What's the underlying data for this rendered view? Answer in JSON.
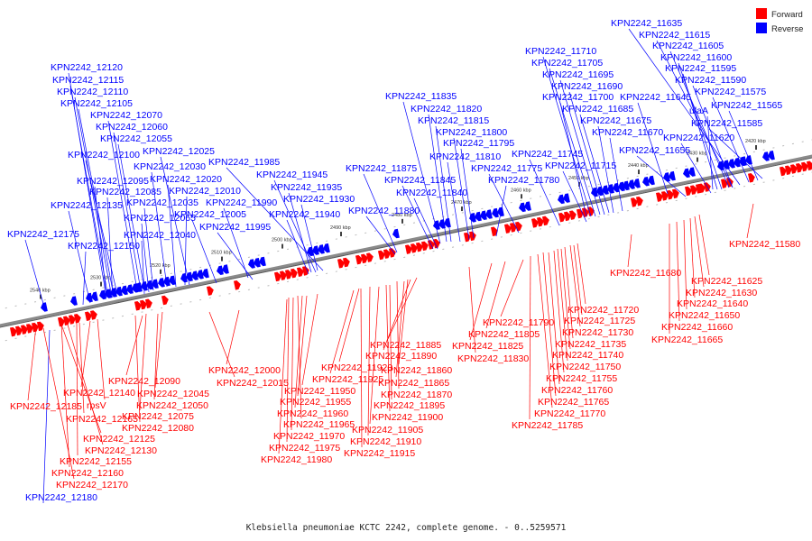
{
  "caption": "Klebsiella pneumoniae KCTC 2242, complete genome. - 0..5259571",
  "legend": [
    {
      "label": "Forward",
      "color": "#ff0000"
    },
    {
      "label": "Reverse",
      "color": "#0000ff"
    }
  ],
  "colors": {
    "forward": "#ff0000",
    "reverse": "#0000ff",
    "backbone": "#777777"
  },
  "ticks": [
    "2540 kbp",
    "2530 kbp",
    "2520 kbp",
    "2510 kbp",
    "2500 kbp",
    "2490 kbp",
    "2480 kbp",
    "2470 kbp",
    "2460 kbp",
    "2450 kbp",
    "2440 kbp",
    "2430 kbp",
    "2420 kbp"
  ],
  "reverse_labels": [
    "KPN2242_11635",
    "KPN2242_11615",
    "KPN2242_11605",
    "KPN2242_11600",
    "KPN2242_11595",
    "KPN2242_11590",
    "KPN2242_11575",
    "KPN2242_11565",
    "KPN2242_11585",
    "ulaA",
    "KPN2242_11645",
    "KPN2242_11620",
    "KPN2242_11655",
    "KPN2242_11710",
    "KPN2242_11705",
    "KPN2242_11695",
    "KPN2242_11690",
    "KPN2242_11700",
    "KPN2242_11685",
    "KPN2242_11675",
    "KPN2242_11670",
    "KPN2242_11745",
    "KPN2242_11715",
    "KPN2242_11835",
    "KPN2242_11820",
    "KPN2242_11815",
    "KPN2242_11800",
    "KPN2242_11795",
    "KPN2242_11810",
    "KPN2242_11775",
    "KPN2242_11780",
    "KPN2242_11875",
    "KPN2242_11845",
    "KPN2242_11840",
    "KPN2242_11880",
    "KPN2242_11985",
    "KPN2242_11945",
    "KPN2242_11935",
    "KPN2242_11930",
    "KPN2242_11990",
    "KPN2242_11940",
    "KPN2242_11995",
    "KPN2242_12120",
    "KPN2242_12115",
    "KPN2242_12110",
    "KPN2242_12105",
    "KPN2242_12070",
    "KPN2242_12060",
    "KPN2242_12055",
    "KPN2242_12025",
    "KPN2242_12100",
    "KPN2242_12030",
    "KPN2242_12020",
    "KPN2242_12095",
    "KPN2242_12010",
    "KPN2242_12085",
    "KPN2242_12035",
    "KPN2242_12135",
    "KPN2242_12005",
    "KPN2242_12065",
    "KPN2242_12040",
    "KPN2242_12175",
    "KPN2242_12150",
    "KPN2242_12180"
  ],
  "forward_labels": [
    "KPN2242_11580",
    "KPN2242_11625",
    "KPN2242_11630",
    "KPN2242_11640",
    "KPN2242_11650",
    "KPN2242_11660",
    "KPN2242_11665",
    "KPN2242_11680",
    "KPN2242_11720",
    "KPN2242_11725",
    "KPN2242_11730",
    "KPN2242_11735",
    "KPN2242_11740",
    "KPN2242_11750",
    "KPN2242_11755",
    "KPN2242_11760",
    "KPN2242_11765",
    "KPN2242_11770",
    "KPN2242_11785",
    "KPN2242_11790",
    "KPN2242_11805",
    "KPN2242_11825",
    "KPN2242_11830",
    "KPN2242_11885",
    "KPN2242_11890",
    "KPN2242_11860",
    "KPN2242_11865",
    "KPN2242_11870",
    "KPN2242_11895",
    "KPN2242_11900",
    "KPN2242_11905",
    "KPN2242_11910",
    "KPN2242_11915",
    "KPN2242_11920",
    "KPN2242_11925",
    "KPN2242_11950",
    "KPN2242_11955",
    "KPN2242_11960",
    "KPN2242_11965",
    "KPN2242_11970",
    "KPN2242_11975",
    "KPN2242_11980",
    "KPN2242_12000",
    "KPN2242_12015",
    "KPN2242_12090",
    "KPN2242_12045",
    "KPN2242_12050",
    "KPN2242_12075",
    "KPN2242_12080",
    "KPN2242_12140",
    "rpsV",
    "KPN2242_12185",
    "KPN2242_12165",
    "KPN2242_12125",
    "KPN2242_12130",
    "KPN2242_12155",
    "KPN2242_12160",
    "KPN2242_12170"
  ]
}
